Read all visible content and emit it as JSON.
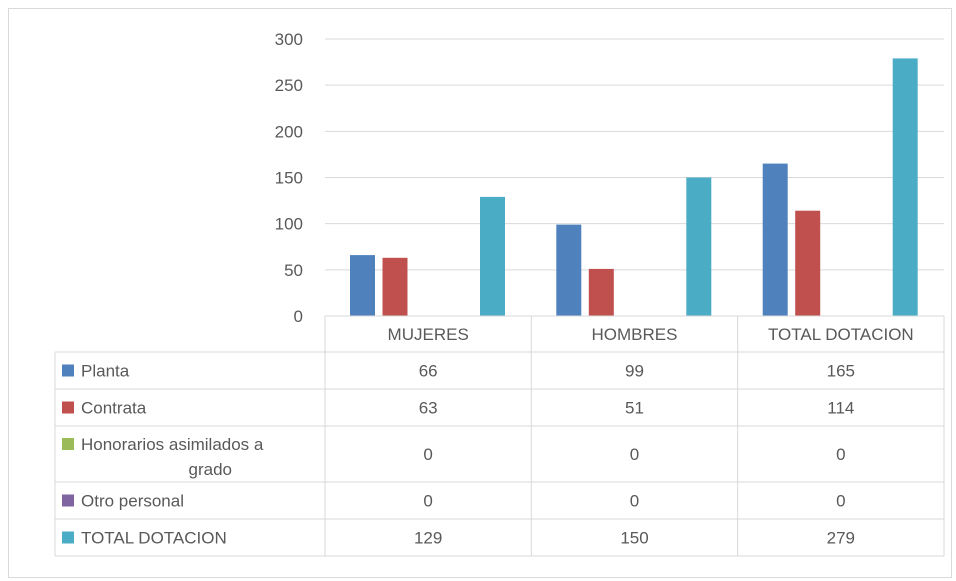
{
  "chart_data": {
    "type": "bar",
    "categories": [
      "MUJERES",
      "HOMBRES",
      "TOTAL DOTACION"
    ],
    "series": [
      {
        "name": "Planta",
        "label_lines": [
          "Planta"
        ],
        "color": "#4f81bd",
        "values": [
          66,
          99,
          165
        ]
      },
      {
        "name": "Contrata",
        "label_lines": [
          "Contrata"
        ],
        "color": "#c0504d",
        "values": [
          63,
          51,
          114
        ]
      },
      {
        "name": "Honorarios asimilados a grado",
        "label_lines": [
          "Honorarios asimilados a",
          "grado"
        ],
        "color": "#9bbb59",
        "values": [
          0,
          0,
          0
        ]
      },
      {
        "name": "Otro personal",
        "label_lines": [
          "Otro personal"
        ],
        "color": "#8064a2",
        "values": [
          0,
          0,
          0
        ]
      },
      {
        "name": "TOTAL DOTACION",
        "label_lines": [
          "TOTAL DOTACION"
        ],
        "color": "#4bacc6",
        "values": [
          129,
          150,
          279
        ]
      }
    ],
    "yticks": [
      0,
      50,
      100,
      150,
      200,
      250,
      300
    ],
    "ylim": [
      0,
      300
    ],
    "grid": true,
    "legend": "data-table"
  }
}
